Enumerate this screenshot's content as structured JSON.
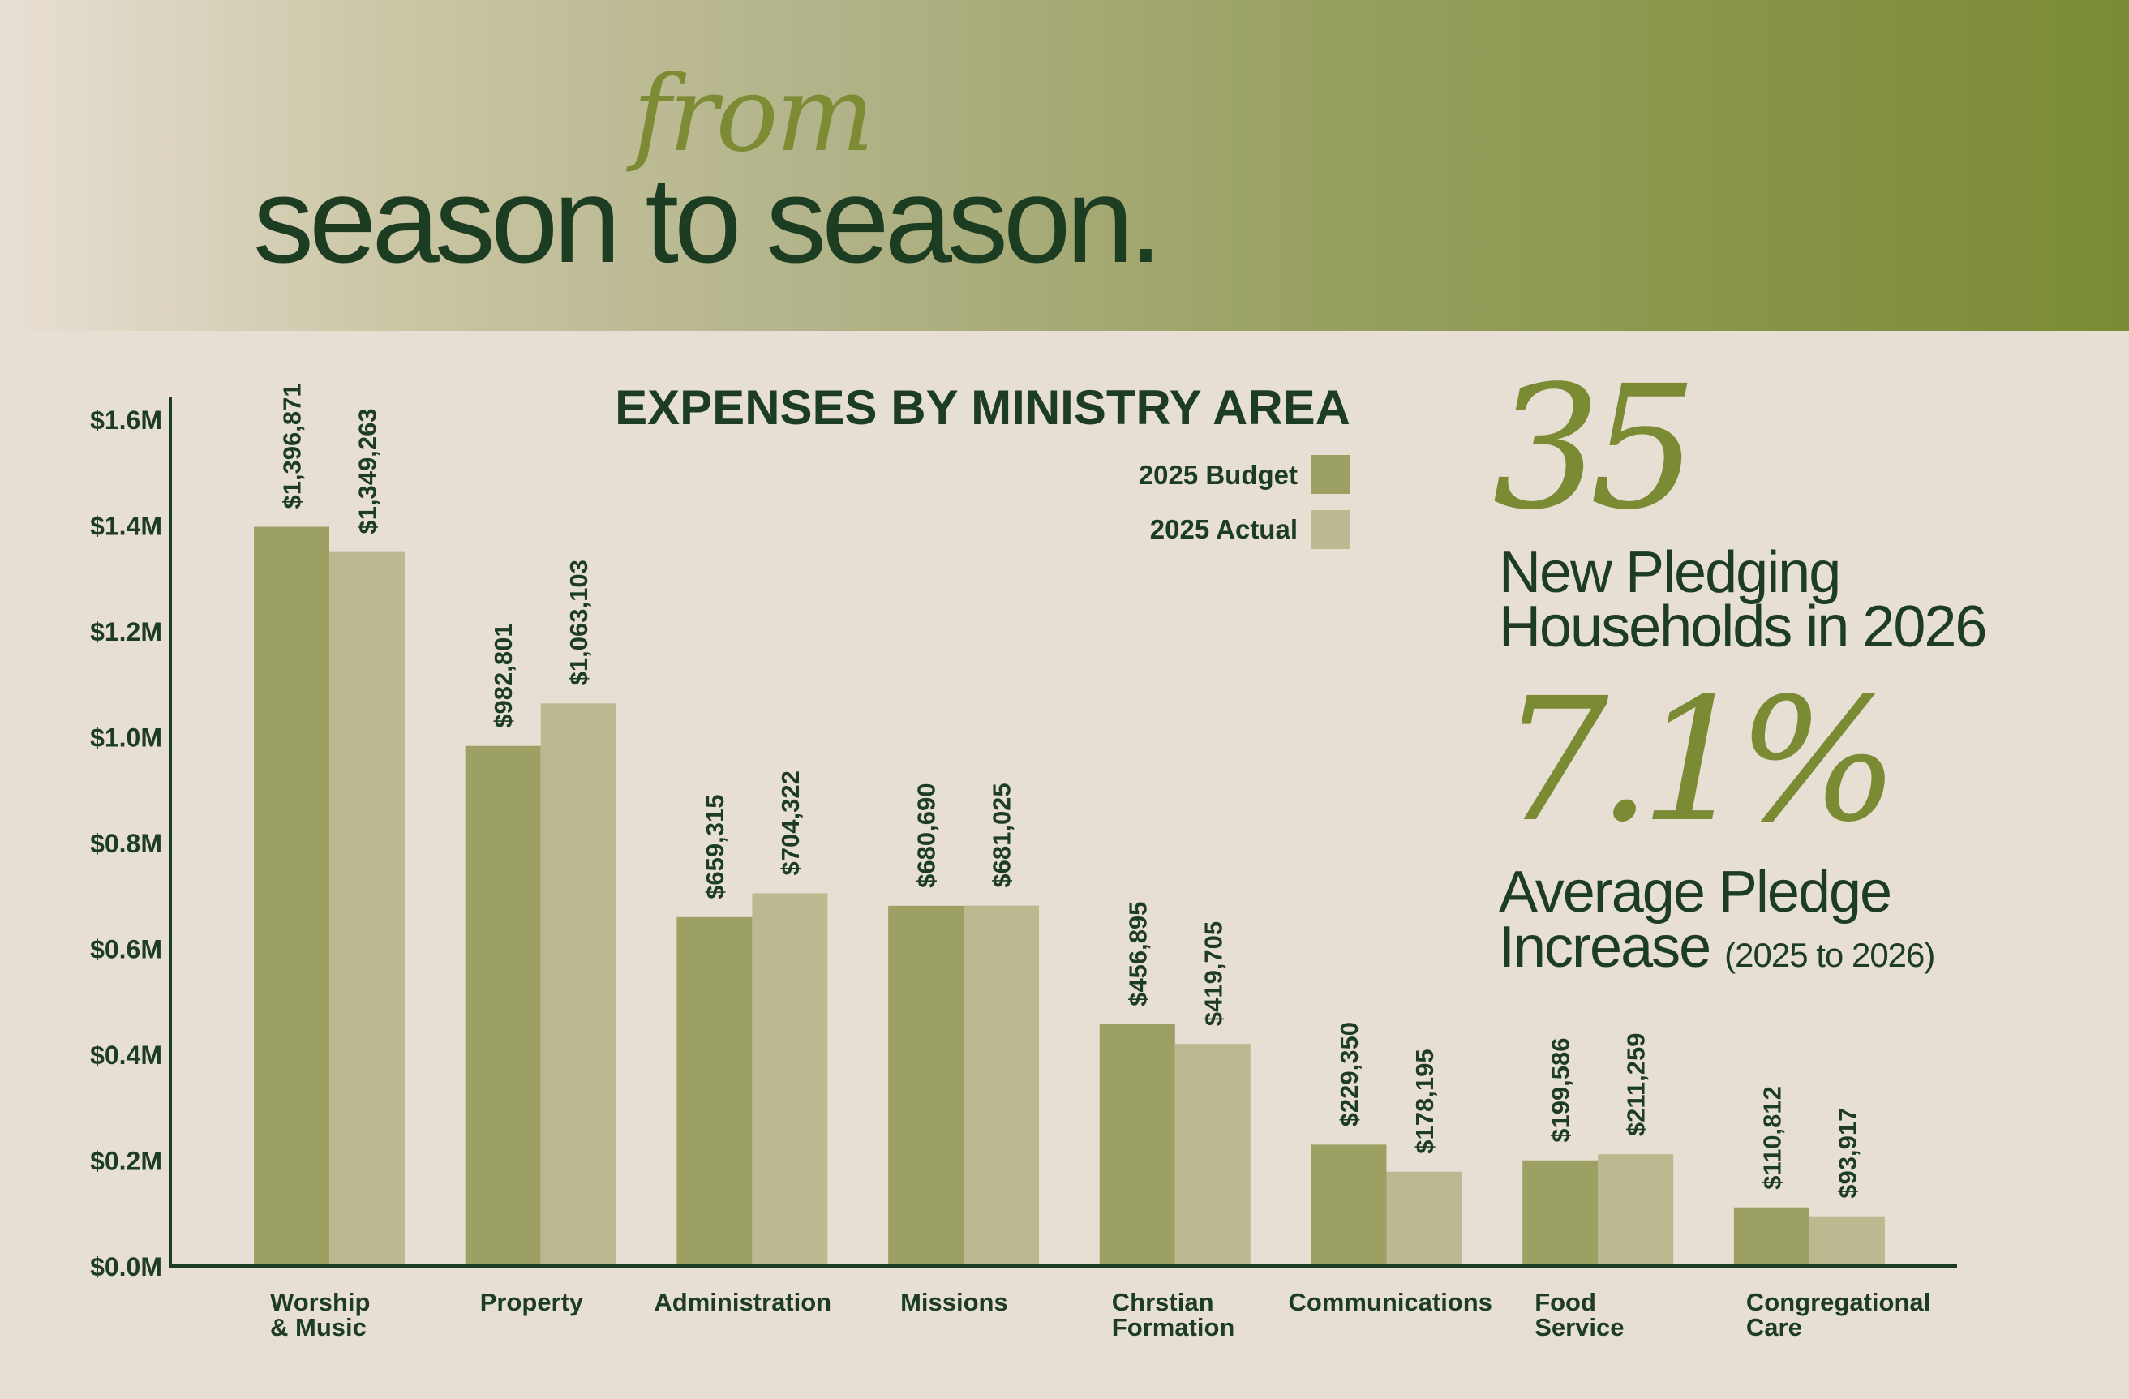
{
  "header": {
    "title_script": "from",
    "title_main": "season to season."
  },
  "stats": [
    {
      "value": "35",
      "label_line1": "New Pledging",
      "label_line2": "Households in 2026",
      "label_sub": ""
    },
    {
      "value": "7.1%",
      "label_line1": "Average Pledge",
      "label_line2": "Increase",
      "label_sub": "(2025 to 2026)"
    }
  ],
  "colors": {
    "budget": "#9ca163",
    "actual": "#bcb88f",
    "dark_green": "#1d3d22",
    "accent_olive": "#7a8b34"
  },
  "chart_data": {
    "type": "bar",
    "title": "EXPENSES BY MINISTRY AREA",
    "categories": [
      [
        "Worship",
        "& Music"
      ],
      [
        "Property"
      ],
      [
        "Administration"
      ],
      [
        "Missions"
      ],
      [
        "Chrstian",
        "Formation"
      ],
      [
        "Communications"
      ],
      [
        "Food",
        "Service"
      ],
      [
        "Congregational",
        "Care"
      ]
    ],
    "series": [
      {
        "name": "2025 Budget",
        "color": "#9ca163",
        "values": [
          1396871,
          982801,
          659315,
          680690,
          456895,
          229350,
          199586,
          110812
        ],
        "labels": [
          "$1,396,871",
          "$982,801",
          "$659,315",
          "$680,690",
          "$456,895",
          "$229,350",
          "$199,586",
          "$110,812"
        ]
      },
      {
        "name": "2025 Actual",
        "color": "#bcb88f",
        "values": [
          1349263,
          1063103,
          704322,
          681025,
          419705,
          178195,
          211259,
          93917
        ],
        "labels": [
          "$1,349,263",
          "$1,063,103",
          "$704,322",
          "$681,025",
          "$419,705",
          "$178,195",
          "$211,259",
          "$93,917"
        ]
      }
    ],
    "yticks": [
      {
        "value": 0,
        "label": "$0.0M"
      },
      {
        "value": 200000,
        "label": "$0.2M"
      },
      {
        "value": 400000,
        "label": "$0.4M"
      },
      {
        "value": 600000,
        "label": "$0.6M"
      },
      {
        "value": 800000,
        "label": "$0.8M"
      },
      {
        "value": 1000000,
        "label": "$1.0M"
      },
      {
        "value": 1200000,
        "label": "$1.2M"
      },
      {
        "value": 1400000,
        "label": "$1.4M"
      },
      {
        "value": 1600000,
        "label": "$1.6M"
      }
    ],
    "ylim": [
      0,
      1600000
    ],
    "grid": false,
    "legend_position": "top-right"
  }
}
